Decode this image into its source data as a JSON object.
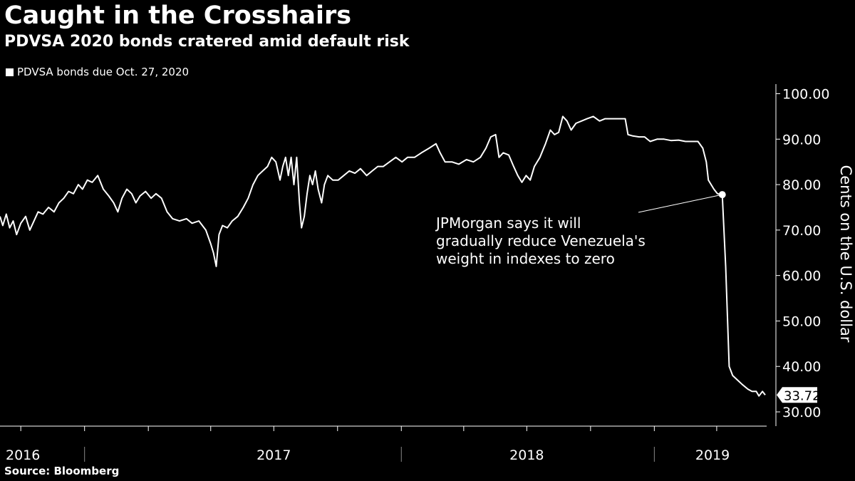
{
  "header": {
    "title": "Caught in the Crosshairs",
    "subtitle": "PDVSA 2020 bonds cratered amid default risk"
  },
  "legend": {
    "label": "PDVSA bonds due Oct. 27, 2020"
  },
  "footer": {
    "source": "Source: Bloomberg"
  },
  "colors": {
    "background": "#000000",
    "line": "#ffffff",
    "text": "#ffffff"
  },
  "chart_data": {
    "type": "line",
    "title": "Caught in the Crosshairs",
    "subtitle": "PDVSA 2020 bonds cratered amid default risk",
    "ylabel": "Cents on the U.S. dollar",
    "ylim": [
      30,
      100
    ],
    "yticks": [
      "100.00",
      "90.00",
      "80.00",
      "70.00",
      "60.00",
      "50.00",
      "40.00",
      "30.00"
    ],
    "xlim": [
      "2016-06-01",
      "2019-06-10"
    ],
    "year_labels": [
      {
        "label": "2016",
        "date": "2016-07-20"
      },
      {
        "label": "2017",
        "date": "2017-07-01"
      },
      {
        "label": "2018",
        "date": "2018-07-01"
      },
      {
        "label": "2019",
        "date": "2019-03-26"
      }
    ],
    "year_dividers": [
      "2016-10-01",
      "2018-01-01",
      "2019-01-01"
    ],
    "grid": false,
    "legend_position": "top-left",
    "last_value_label": "33.72",
    "annotation": {
      "text": [
        "JPMorgan says it will",
        "gradually reduce Venezuela's",
        "weight in indexes to zero"
      ],
      "point": {
        "date": "2019-04-09",
        "value": 77.8
      }
    },
    "series": [
      {
        "name": "PDVSA bonds due Oct. 27, 2020",
        "points": [
          [
            "2016-06-01",
            73
          ],
          [
            "2016-06-05",
            71
          ],
          [
            "2016-06-10",
            73.5
          ],
          [
            "2016-06-15",
            70.5
          ],
          [
            "2016-06-20",
            72
          ],
          [
            "2016-06-25",
            69
          ],
          [
            "2016-07-01",
            71.5
          ],
          [
            "2016-07-08",
            73
          ],
          [
            "2016-07-14",
            70
          ],
          [
            "2016-07-20",
            72
          ],
          [
            "2016-07-26",
            74
          ],
          [
            "2016-08-02",
            73.5
          ],
          [
            "2016-08-10",
            75
          ],
          [
            "2016-08-18",
            74
          ],
          [
            "2016-08-25",
            76
          ],
          [
            "2016-09-01",
            77
          ],
          [
            "2016-09-08",
            78.5
          ],
          [
            "2016-09-15",
            78
          ],
          [
            "2016-09-22",
            80
          ],
          [
            "2016-09-28",
            79
          ],
          [
            "2016-10-05",
            81
          ],
          [
            "2016-10-12",
            80.5
          ],
          [
            "2016-10-20",
            82
          ],
          [
            "2016-10-28",
            79
          ],
          [
            "2016-11-05",
            77.5
          ],
          [
            "2016-11-12",
            76
          ],
          [
            "2016-11-18",
            74
          ],
          [
            "2016-11-24",
            77
          ],
          [
            "2016-12-01",
            79
          ],
          [
            "2016-12-08",
            78
          ],
          [
            "2016-12-14",
            76
          ],
          [
            "2016-12-20",
            77.5
          ],
          [
            "2016-12-28",
            78.5
          ],
          [
            "2017-01-05",
            77
          ],
          [
            "2017-01-12",
            78
          ],
          [
            "2017-01-20",
            77
          ],
          [
            "2017-01-28",
            74
          ],
          [
            "2017-02-05",
            72.5
          ],
          [
            "2017-02-15",
            72
          ],
          [
            "2017-02-25",
            72.5
          ],
          [
            "2017-03-05",
            71.5
          ],
          [
            "2017-03-15",
            72
          ],
          [
            "2017-03-25",
            70
          ],
          [
            "2017-04-01",
            67
          ],
          [
            "2017-04-05",
            65
          ],
          [
            "2017-04-09",
            62
          ],
          [
            "2017-04-13",
            69
          ],
          [
            "2017-04-18",
            71
          ],
          [
            "2017-04-25",
            70.5
          ],
          [
            "2017-05-02",
            72
          ],
          [
            "2017-05-10",
            73
          ],
          [
            "2017-05-18",
            75
          ],
          [
            "2017-05-25",
            77
          ],
          [
            "2017-06-01",
            80
          ],
          [
            "2017-06-08",
            82
          ],
          [
            "2017-06-15",
            83
          ],
          [
            "2017-06-22",
            84
          ],
          [
            "2017-06-28",
            86
          ],
          [
            "2017-07-04",
            85
          ],
          [
            "2017-07-10",
            81
          ],
          [
            "2017-07-14",
            84
          ],
          [
            "2017-07-18",
            86
          ],
          [
            "2017-07-22",
            82
          ],
          [
            "2017-07-26",
            86
          ],
          [
            "2017-07-30",
            80
          ],
          [
            "2017-08-03",
            86
          ],
          [
            "2017-08-07",
            76
          ],
          [
            "2017-08-10",
            70.5
          ],
          [
            "2017-08-14",
            73
          ],
          [
            "2017-08-18",
            78
          ],
          [
            "2017-08-22",
            82
          ],
          [
            "2017-08-26",
            80
          ],
          [
            "2017-08-30",
            83
          ],
          [
            "2017-09-03",
            79
          ],
          [
            "2017-09-08",
            76
          ],
          [
            "2017-09-12",
            80
          ],
          [
            "2017-09-17",
            82
          ],
          [
            "2017-09-24",
            81
          ],
          [
            "2017-10-02",
            81
          ],
          [
            "2017-10-10",
            82
          ],
          [
            "2017-10-18",
            83
          ],
          [
            "2017-10-26",
            82.5
          ],
          [
            "2017-11-03",
            83.5
          ],
          [
            "2017-11-12",
            82
          ],
          [
            "2017-11-20",
            83
          ],
          [
            "2017-11-28",
            84
          ],
          [
            "2017-12-06",
            84
          ],
          [
            "2017-12-15",
            85
          ],
          [
            "2017-12-24",
            86
          ],
          [
            "2018-01-02",
            85
          ],
          [
            "2018-01-10",
            86
          ],
          [
            "2018-01-20",
            86
          ],
          [
            "2018-01-30",
            87
          ],
          [
            "2018-02-10",
            88
          ],
          [
            "2018-02-20",
            89
          ],
          [
            "2018-02-26",
            87
          ],
          [
            "2018-03-05",
            85
          ],
          [
            "2018-03-15",
            85
          ],
          [
            "2018-03-25",
            84.5
          ],
          [
            "2018-04-05",
            85.5
          ],
          [
            "2018-04-15",
            85
          ],
          [
            "2018-04-25",
            86
          ],
          [
            "2018-05-03",
            88
          ],
          [
            "2018-05-10",
            90.5
          ],
          [
            "2018-05-17",
            91
          ],
          [
            "2018-05-22",
            86
          ],
          [
            "2018-05-28",
            87
          ],
          [
            "2018-06-05",
            86.5
          ],
          [
            "2018-06-12",
            84
          ],
          [
            "2018-06-18",
            82
          ],
          [
            "2018-06-24",
            80.5
          ],
          [
            "2018-06-30",
            82
          ],
          [
            "2018-07-06",
            81
          ],
          [
            "2018-07-12",
            84
          ],
          [
            "2018-07-20",
            86
          ],
          [
            "2018-07-28",
            89
          ],
          [
            "2018-08-04",
            92
          ],
          [
            "2018-08-10",
            91
          ],
          [
            "2018-08-16",
            91.5
          ],
          [
            "2018-08-22",
            95
          ],
          [
            "2018-08-28",
            94
          ],
          [
            "2018-09-03",
            92
          ],
          [
            "2018-09-10",
            93.5
          ],
          [
            "2018-09-18",
            94
          ],
          [
            "2018-09-26",
            94.5
          ],
          [
            "2018-10-05",
            95
          ],
          [
            "2018-10-14",
            94
          ],
          [
            "2018-10-22",
            94.5
          ],
          [
            "2018-11-01",
            94.5
          ],
          [
            "2018-11-10",
            94.5
          ],
          [
            "2018-11-20",
            94.5
          ],
          [
            "2018-11-24",
            91
          ],
          [
            "2018-12-01",
            90.7
          ],
          [
            "2018-12-10",
            90.5
          ],
          [
            "2018-12-18",
            90.5
          ],
          [
            "2018-12-26",
            89.5
          ],
          [
            "2019-01-05",
            90
          ],
          [
            "2019-01-15",
            90
          ],
          [
            "2019-01-25",
            89.7
          ],
          [
            "2019-02-05",
            89.8
          ],
          [
            "2019-02-15",
            89.5
          ],
          [
            "2019-02-25",
            89.5
          ],
          [
            "2019-03-05",
            89.5
          ],
          [
            "2019-03-12",
            88
          ],
          [
            "2019-03-17",
            85
          ],
          [
            "2019-03-20",
            81
          ],
          [
            "2019-03-24",
            80
          ],
          [
            "2019-03-28",
            79
          ],
          [
            "2019-04-02",
            78
          ],
          [
            "2019-04-09",
            77.8
          ],
          [
            "2019-04-14",
            62
          ],
          [
            "2019-04-19",
            40
          ],
          [
            "2019-04-24",
            38
          ],
          [
            "2019-05-01",
            37
          ],
          [
            "2019-05-08",
            36
          ],
          [
            "2019-05-16",
            35
          ],
          [
            "2019-05-22",
            34.5
          ],
          [
            "2019-05-28",
            34.5
          ],
          [
            "2019-06-01",
            33.5
          ],
          [
            "2019-06-06",
            34.5
          ],
          [
            "2019-06-10",
            33.72
          ]
        ]
      }
    ]
  }
}
